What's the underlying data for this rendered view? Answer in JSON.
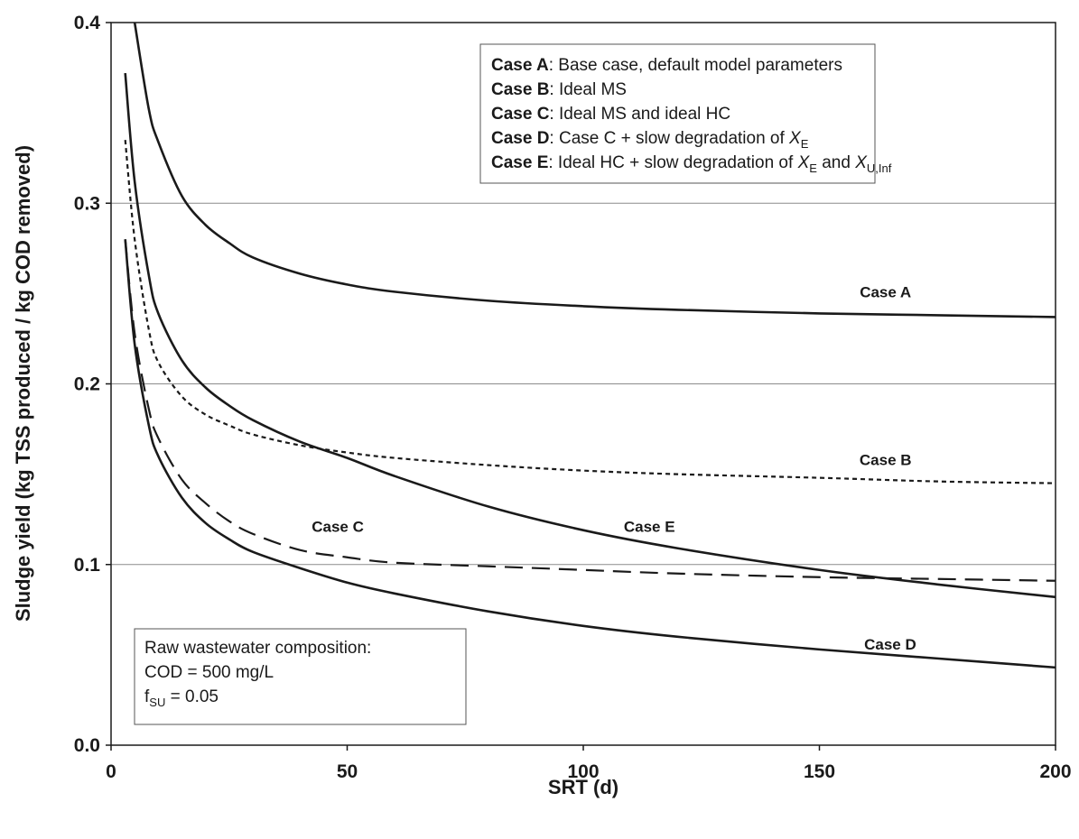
{
  "chart_data": {
    "type": "line",
    "xlabel": "SRT (d)",
    "ylabel": "Sludge yield (kg TSS produced / kg COD removed)",
    "xlim": [
      0,
      200
    ],
    "ylim": [
      0,
      0.4
    ],
    "xticks": [
      "0",
      "50",
      "100",
      "150",
      "200"
    ],
    "yticks": [
      "0.0",
      "0.1",
      "0.2",
      "0.3",
      "0.4"
    ],
    "grid": "horizontal",
    "series": [
      {
        "name": "Case A",
        "style": "solid",
        "x": [
          5,
          8,
          10,
          15,
          20,
          25,
          30,
          40,
          50,
          60,
          80,
          100,
          120,
          150,
          175,
          200
        ],
        "y": [
          0.4,
          0.352,
          0.334,
          0.304,
          0.288,
          0.278,
          0.27,
          0.261,
          0.255,
          0.251,
          0.246,
          0.243,
          0.241,
          0.239,
          0.238,
          0.237
        ]
      },
      {
        "name": "Case B",
        "style": "dotted",
        "x": [
          3,
          5,
          8,
          10,
          15,
          20,
          25,
          30,
          40,
          50,
          60,
          80,
          100,
          120,
          150,
          175,
          200
        ],
        "y": [
          0.335,
          0.28,
          0.23,
          0.212,
          0.193,
          0.183,
          0.177,
          0.172,
          0.166,
          0.162,
          0.159,
          0.155,
          0.152,
          0.15,
          0.148,
          0.146,
          0.145
        ]
      },
      {
        "name": "Case C",
        "style": "dashed",
        "x": [
          3,
          5,
          8,
          10,
          15,
          20,
          25,
          30,
          40,
          50,
          60,
          80,
          100,
          120,
          150,
          175,
          200
        ],
        "y": [
          0.28,
          0.228,
          0.186,
          0.17,
          0.147,
          0.134,
          0.124,
          0.117,
          0.108,
          0.104,
          0.101,
          0.099,
          0.097,
          0.095,
          0.093,
          0.092,
          0.091
        ]
      },
      {
        "name": "Case D",
        "style": "solid",
        "x": [
          3,
          5,
          8,
          10,
          15,
          20,
          25,
          30,
          40,
          50,
          60,
          80,
          100,
          120,
          150,
          175,
          200
        ],
        "y": [
          0.28,
          0.222,
          0.177,
          0.16,
          0.137,
          0.123,
          0.114,
          0.107,
          0.098,
          0.09,
          0.084,
          0.074,
          0.066,
          0.06,
          0.053,
          0.048,
          0.043
        ]
      },
      {
        "name": "Case E",
        "style": "solid",
        "x": [
          3,
          5,
          8,
          10,
          15,
          20,
          25,
          30,
          40,
          50,
          60,
          80,
          100,
          120,
          150,
          175,
          200
        ],
        "y": [
          0.372,
          0.312,
          0.26,
          0.239,
          0.213,
          0.198,
          0.188,
          0.18,
          0.168,
          0.159,
          0.149,
          0.132,
          0.119,
          0.109,
          0.097,
          0.089,
          0.082
        ]
      }
    ],
    "series_labels": [
      {
        "text": "Case A",
        "x": 164,
        "y": 0.248
      },
      {
        "text": "Case B",
        "x": 164,
        "y": 0.155
      },
      {
        "text": "Case C",
        "x": 48,
        "y": 0.118
      },
      {
        "text": "Case E",
        "x": 114,
        "y": 0.118
      },
      {
        "text": "Case D",
        "x": 165,
        "y": 0.053
      }
    ],
    "legend": {
      "placement": "top-right",
      "entries": [
        {
          "bold": "Case A",
          "parts": [
            ": Base case, default model parameters"
          ]
        },
        {
          "bold": "Case B",
          "parts": [
            ": Ideal MS"
          ]
        },
        {
          "bold": "Case C",
          "parts": [
            ": Ideal MS and ideal HC"
          ]
        },
        {
          "bold": "Case D",
          "parts": [
            ": Case C + slow degradation of ",
            "X",
            "E"
          ]
        },
        {
          "bold": "Case E",
          "parts": [
            ": Ideal HC + slow degradation of ",
            "X",
            "E",
            " and ",
            "X",
            "U,Inf"
          ]
        }
      ]
    },
    "annotation": {
      "placement": "bottom-left",
      "line1": "Raw wastewater composition:",
      "line2": "COD = 500 mg/L",
      "line3_main": "f",
      "line3_sub": "SU",
      "line3_rest": " = 0.05"
    }
  }
}
